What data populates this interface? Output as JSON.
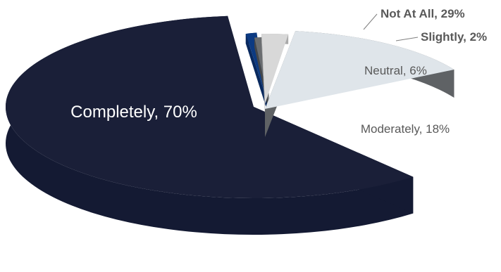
{
  "chart_data": {
    "type": "pie",
    "style": "3d-exploded",
    "slices": [
      {
        "name": "Completely",
        "value": 70,
        "label": "Completely, 70%",
        "top": "#1a1f38",
        "side": "#141a33",
        "label_color": "#ffffff"
      },
      {
        "name": "Not At All",
        "value": 29,
        "label": "Not At All, 29%",
        "top": "#0c3a82",
        "side": "#09295e",
        "label_color": "#595959"
      },
      {
        "name": "Slightly",
        "value": 2,
        "label": "Slightly, 2%",
        "top": "#6a6d70",
        "side": "#454749",
        "label_color": "#595959"
      },
      {
        "name": "Neutral",
        "value": 6,
        "label": "Neutral, 6%",
        "top": "#d8d8d8",
        "side": "#a9a9a9",
        "label_color": "#595959"
      },
      {
        "name": "Moderately",
        "value": 18,
        "label": "Moderately, 18%",
        "top": "#dfe5ea",
        "side": "#5f6265",
        "label_color": "#595959"
      }
    ]
  }
}
